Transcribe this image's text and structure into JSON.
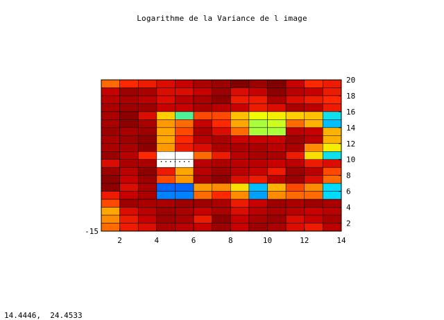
{
  "chart_data": {
    "type": "heatmap",
    "title": "Logarithme de la Variance de l image",
    "x_ticks": [
      "2",
      "4",
      "6",
      "8",
      "10",
      "12",
      "14"
    ],
    "y_ticks": [
      "2",
      "4",
      "6",
      "8",
      "10",
      "12",
      "14",
      "16",
      "18",
      "20"
    ],
    "corner_label": "-15",
    "xlim": [
      1,
      14
    ],
    "ylim": [
      1,
      20
    ],
    "grid": false,
    "annotation": ".......",
    "annotation_cell": {
      "col": 4,
      "row": 10
    },
    "columns": 13,
    "rows": 19,
    "cells_top_to_bottom": [
      [
        0.55,
        0.45,
        0.4,
        0.35,
        0.3,
        0.2,
        0.15,
        0.05,
        0.15,
        0.05,
        0.3,
        0.45,
        0.4
      ],
      [
        0.3,
        0.15,
        0.2,
        0.35,
        0.35,
        0.3,
        0.15,
        0.35,
        0.3,
        0.1,
        0.25,
        0.3,
        0.4
      ],
      [
        0.25,
        0.2,
        0.25,
        0.35,
        0.25,
        0.2,
        0.1,
        0.4,
        0.4,
        0.2,
        0.35,
        0.4,
        0.45
      ],
      [
        0.2,
        0.15,
        0.15,
        0.3,
        0.3,
        0.2,
        0.25,
        0.3,
        0.4,
        0.35,
        0.2,
        0.25,
        0.4
      ],
      [
        0.2,
        0.1,
        0.35,
        0.85,
        1.3,
        0.5,
        0.5,
        0.8,
        1.0,
        0.95,
        0.85,
        0.8,
        1.5
      ],
      [
        0.2,
        0.1,
        0.2,
        0.65,
        0.55,
        0.3,
        0.45,
        0.7,
        1.1,
        1.05,
        0.55,
        0.75,
        1.6
      ],
      [
        0.15,
        0.2,
        0.15,
        0.7,
        0.5,
        0.2,
        0.35,
        0.55,
        1.1,
        1.1,
        0.25,
        0.3,
        0.75
      ],
      [
        0.2,
        0.15,
        0.1,
        0.7,
        0.45,
        0.25,
        0.2,
        0.3,
        0.3,
        0.3,
        0.15,
        0.25,
        0.75
      ],
      [
        0.2,
        0.2,
        0.1,
        0.65,
        0.4,
        0.35,
        0.2,
        0.2,
        0.2,
        0.25,
        0.2,
        0.6,
        0.95
      ],
      [
        0.15,
        0.25,
        0.45,
        2.0,
        2.0,
        0.55,
        0.4,
        0.25,
        0.2,
        0.2,
        0.4,
        0.9,
        1.5
      ],
      [
        0.35,
        0.2,
        0.2,
        2.0,
        2.0,
        0.25,
        0.2,
        0.25,
        0.25,
        0.3,
        0.25,
        0.4,
        0.35
      ],
      [
        0.15,
        0.25,
        0.1,
        0.4,
        0.7,
        0.25,
        0.15,
        0.25,
        0.3,
        0.4,
        0.15,
        0.25,
        0.5
      ],
      [
        0.1,
        0.3,
        0.15,
        0.5,
        0.65,
        0.2,
        0.1,
        0.35,
        0.4,
        0.25,
        0.15,
        0.35,
        0.55
      ],
      [
        0.1,
        0.35,
        0.2,
        1.75,
        1.75,
        0.65,
        0.6,
        0.9,
        1.6,
        0.75,
        0.5,
        0.6,
        1.55
      ],
      [
        0.4,
        0.3,
        0.2,
        1.7,
        1.7,
        0.55,
        0.45,
        0.6,
        1.65,
        0.6,
        0.55,
        0.55,
        1.55
      ],
      [
        0.5,
        0.15,
        0.2,
        0.2,
        0.15,
        0.15,
        0.2,
        0.4,
        0.3,
        0.15,
        0.2,
        0.15,
        0.2
      ],
      [
        0.7,
        0.35,
        0.25,
        0.15,
        0.2,
        0.3,
        0.2,
        0.35,
        0.25,
        0.2,
        0.25,
        0.3,
        0.25
      ],
      [
        0.6,
        0.4,
        0.3,
        0.15,
        0.2,
        0.4,
        0.1,
        0.3,
        0.2,
        0.15,
        0.35,
        0.3,
        0.2
      ],
      [
        0.55,
        0.4,
        0.35,
        0.2,
        0.25,
        0.3,
        0.15,
        0.3,
        0.15,
        0.2,
        0.35,
        0.4,
        0.25
      ]
    ]
  },
  "pointer_readout": "14.4446,  24.4533"
}
